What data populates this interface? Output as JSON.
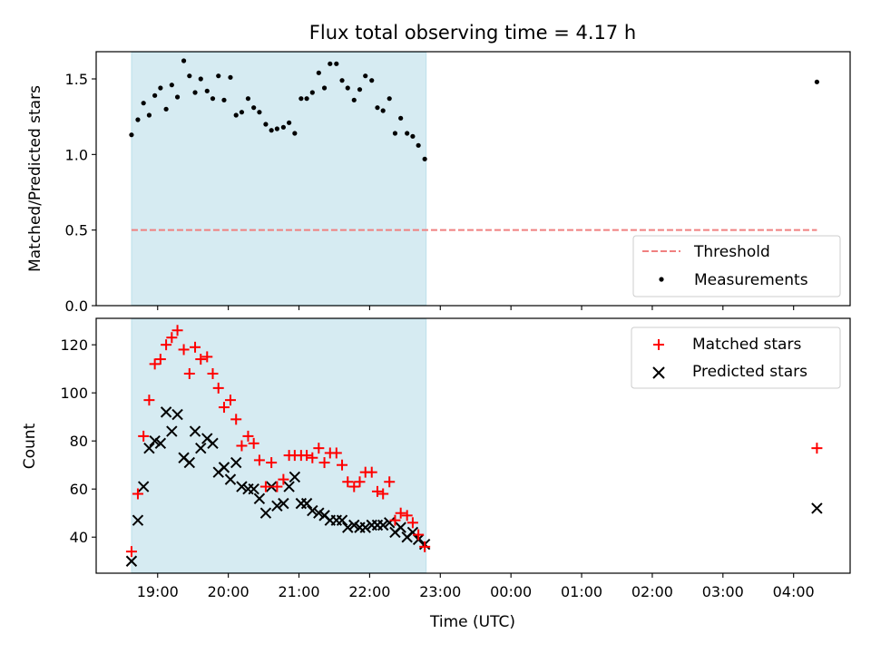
{
  "chart_data": {
    "title": "Flux total observing time = 4.17 h",
    "xlabel": "Time (UTC)",
    "x_ticks": [
      "19:00",
      "20:00",
      "21:00",
      "22:00",
      "23:00",
      "00:00",
      "01:00",
      "02:00",
      "03:00",
      "04:00"
    ],
    "x_range_hours": [
      18.13,
      28.8
    ],
    "highlight_span_hours": [
      18.63,
      22.8
    ],
    "colors": {
      "highlight": "#add8e6",
      "threshold": "#f08080",
      "matched": "#ff0000",
      "predicted": "#000000",
      "measurement": "#000000"
    },
    "panels": [
      {
        "type": "scatter",
        "ylabel": "Matched/Predicted stars",
        "ylim": [
          0,
          1.68
        ],
        "yticks": [
          "0.0",
          "0.5",
          "1.0",
          "1.5"
        ],
        "ytick_values": [
          0,
          0.5,
          1.0,
          1.5
        ],
        "legend_position": "lower-right",
        "threshold": {
          "name": "Threshold",
          "value": 0.5,
          "x_range_hours": [
            18.63,
            28.33
          ]
        },
        "series": [
          {
            "name": "Measurements",
            "marker": "dot",
            "points": [
              [
                18.63,
                1.13
              ],
              [
                18.72,
                1.23
              ],
              [
                18.8,
                1.34
              ],
              [
                18.88,
                1.26
              ],
              [
                18.96,
                1.39
              ],
              [
                19.04,
                1.44
              ],
              [
                19.12,
                1.3
              ],
              [
                19.2,
                1.46
              ],
              [
                19.28,
                1.38
              ],
              [
                19.37,
                1.62
              ],
              [
                19.45,
                1.52
              ],
              [
                19.53,
                1.41
              ],
              [
                19.61,
                1.5
              ],
              [
                19.7,
                1.42
              ],
              [
                19.78,
                1.37
              ],
              [
                19.86,
                1.52
              ],
              [
                19.94,
                1.36
              ],
              [
                20.03,
                1.51
              ],
              [
                20.11,
                1.26
              ],
              [
                20.19,
                1.28
              ],
              [
                20.28,
                1.37
              ],
              [
                20.36,
                1.31
              ],
              [
                20.44,
                1.28
              ],
              [
                20.53,
                1.2
              ],
              [
                20.61,
                1.16
              ],
              [
                20.69,
                1.17
              ],
              [
                20.78,
                1.18
              ],
              [
                20.86,
                1.21
              ],
              [
                20.94,
                1.14
              ],
              [
                21.03,
                1.37
              ],
              [
                21.11,
                1.37
              ],
              [
                21.19,
                1.41
              ],
              [
                21.28,
                1.54
              ],
              [
                21.36,
                1.44
              ],
              [
                21.44,
                1.6
              ],
              [
                21.53,
                1.6
              ],
              [
                21.61,
                1.49
              ],
              [
                21.69,
                1.44
              ],
              [
                21.78,
                1.36
              ],
              [
                21.86,
                1.43
              ],
              [
                21.94,
                1.52
              ],
              [
                22.03,
                1.49
              ],
              [
                22.11,
                1.31
              ],
              [
                22.19,
                1.29
              ],
              [
                22.28,
                1.37
              ],
              [
                22.36,
                1.14
              ],
              [
                22.44,
                1.24
              ],
              [
                22.53,
                1.14
              ],
              [
                22.61,
                1.12
              ],
              [
                22.69,
                1.06
              ],
              [
                22.78,
                0.97
              ],
              [
                28.33,
                1.48
              ]
            ]
          }
        ]
      },
      {
        "type": "scatter",
        "ylabel": "Count",
        "ylim": [
          25,
          131
        ],
        "yticks": [
          "40",
          "60",
          "80",
          "100",
          "120"
        ],
        "ytick_values": [
          40,
          60,
          80,
          100,
          120
        ],
        "legend_position": "upper-right",
        "series": [
          {
            "name": "Matched stars",
            "marker": "plus",
            "points": [
              [
                18.63,
                34
              ],
              [
                18.72,
                58
              ],
              [
                18.8,
                82
              ],
              [
                18.88,
                97
              ],
              [
                18.96,
                112
              ],
              [
                19.04,
                114
              ],
              [
                19.12,
                120
              ],
              [
                19.2,
                123
              ],
              [
                19.28,
                126
              ],
              [
                19.37,
                118
              ],
              [
                19.45,
                108
              ],
              [
                19.53,
                119
              ],
              [
                19.61,
                114
              ],
              [
                19.7,
                115
              ],
              [
                19.78,
                108
              ],
              [
                19.86,
                102
              ],
              [
                19.94,
                94
              ],
              [
                20.03,
                97
              ],
              [
                20.11,
                89
              ],
              [
                20.19,
                78
              ],
              [
                20.28,
                82
              ],
              [
                20.36,
                79
              ],
              [
                20.44,
                72
              ],
              [
                20.53,
                61
              ],
              [
                20.61,
                71
              ],
              [
                20.69,
                61
              ],
              [
                20.78,
                64
              ],
              [
                20.86,
                74
              ],
              [
                20.94,
                74
              ],
              [
                21.03,
                74
              ],
              [
                21.11,
                74
              ],
              [
                21.19,
                73
              ],
              [
                21.28,
                77
              ],
              [
                21.36,
                71
              ],
              [
                21.44,
                75
              ],
              [
                21.53,
                75
              ],
              [
                21.61,
                70
              ],
              [
                21.69,
                63
              ],
              [
                21.78,
                61
              ],
              [
                21.86,
                63
              ],
              [
                21.94,
                67
              ],
              [
                22.03,
                67
              ],
              [
                22.11,
                59
              ],
              [
                22.19,
                58
              ],
              [
                22.28,
                63
              ],
              [
                22.36,
                47
              ],
              [
                22.44,
                50
              ],
              [
                22.53,
                49
              ],
              [
                22.61,
                46
              ],
              [
                22.69,
                41
              ],
              [
                22.78,
                36
              ],
              [
                28.33,
                77
              ]
            ]
          },
          {
            "name": "Predicted stars",
            "marker": "x",
            "points": [
              [
                18.63,
                30
              ],
              [
                18.72,
                47
              ],
              [
                18.8,
                61
              ],
              [
                18.88,
                77
              ],
              [
                18.96,
                80
              ],
              [
                19.04,
                79
              ],
              [
                19.12,
                92
              ],
              [
                19.2,
                84
              ],
              [
                19.28,
                91
              ],
              [
                19.37,
                73
              ],
              [
                19.45,
                71
              ],
              [
                19.53,
                84
              ],
              [
                19.61,
                77
              ],
              [
                19.7,
                81
              ],
              [
                19.78,
                79
              ],
              [
                19.86,
                67
              ],
              [
                19.94,
                69
              ],
              [
                20.03,
                64
              ],
              [
                20.11,
                71
              ],
              [
                20.19,
                61
              ],
              [
                20.28,
                60
              ],
              [
                20.36,
                60
              ],
              [
                20.44,
                56
              ],
              [
                20.53,
                50
              ],
              [
                20.61,
                61
              ],
              [
                20.69,
                53
              ],
              [
                20.78,
                54
              ],
              [
                20.86,
                61
              ],
              [
                20.94,
                65
              ],
              [
                21.03,
                54
              ],
              [
                21.11,
                54
              ],
              [
                21.19,
                51
              ],
              [
                21.28,
                50
              ],
              [
                21.36,
                49
              ],
              [
                21.44,
                47
              ],
              [
                21.53,
                47
              ],
              [
                21.61,
                47
              ],
              [
                21.69,
                44
              ],
              [
                21.78,
                45
              ],
              [
                21.86,
                44
              ],
              [
                21.94,
                44
              ],
              [
                22.03,
                45
              ],
              [
                22.11,
                45
              ],
              [
                22.19,
                45
              ],
              [
                22.28,
                46
              ],
              [
                22.36,
                42
              ],
              [
                22.44,
                44
              ],
              [
                22.53,
                40
              ],
              [
                22.61,
                42
              ],
              [
                22.69,
                39
              ],
              [
                22.78,
                37
              ],
              [
                28.33,
                52
              ]
            ]
          }
        ]
      }
    ]
  }
}
